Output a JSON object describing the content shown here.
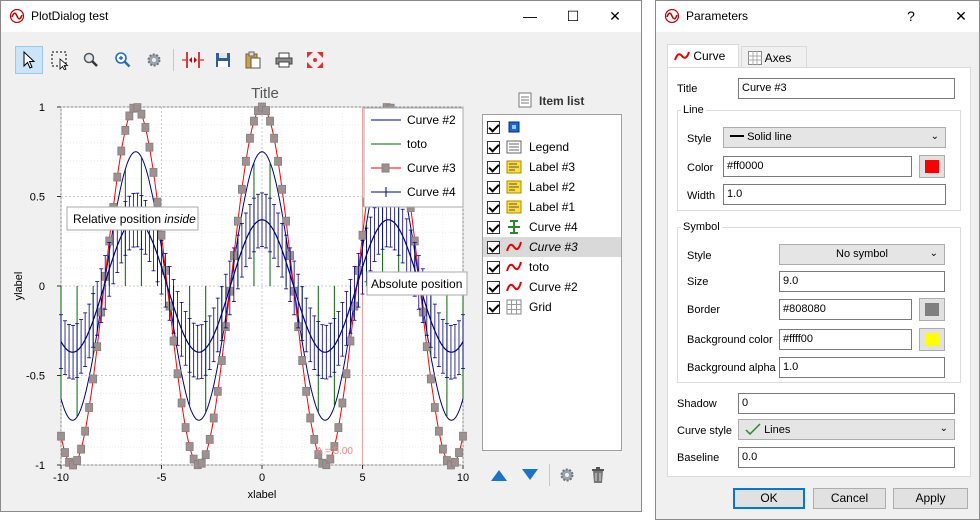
{
  "plot_window": {
    "title": "PlotDialog test",
    "controls": {
      "minimize": "—",
      "maximize": "☐",
      "close": "✕"
    },
    "toolbar": [
      "select-tool",
      "zoom-rect-tool",
      "zoom-tool",
      "zoom-fit-tool",
      "settings-tool",
      "cursor-tool",
      "save-tool",
      "copy-tool",
      "print-tool",
      "fullscreen-tool"
    ],
    "item_list_title": "Item list",
    "items": [
      {
        "label": "",
        "icon": "image-icon",
        "checked": true
      },
      {
        "label": "Legend",
        "icon": "legend-icon",
        "checked": true
      },
      {
        "label": "Label #3",
        "icon": "label-icon",
        "checked": true
      },
      {
        "label": "Label #2",
        "icon": "label-icon",
        "checked": true
      },
      {
        "label": "Label #1",
        "icon": "label-icon",
        "checked": true
      },
      {
        "label": "Curve #4",
        "icon": "errorbar-icon",
        "checked": true
      },
      {
        "label": "Curve #3",
        "icon": "curve-icon",
        "checked": true,
        "selected": true
      },
      {
        "label": "toto",
        "icon": "curve-icon",
        "checked": true
      },
      {
        "label": "Curve #2",
        "icon": "curve-icon",
        "checked": true
      },
      {
        "label": "Grid",
        "icon": "grid-icon",
        "checked": true
      }
    ],
    "list_tools": [
      "move-up-icon",
      "move-down-icon",
      "gear-icon",
      "trash-icon"
    ]
  },
  "chart_data": {
    "type": "line",
    "title": "Title",
    "xlabel": "xlabel",
    "ylabel": "ylabel",
    "xlim": [
      -10,
      10
    ],
    "ylim": [
      -1,
      1
    ],
    "xticks": [
      "-10",
      "-5",
      "0",
      "5",
      "10"
    ],
    "yticks": [
      "-1",
      "-0.5",
      "0",
      "0.5",
      "1"
    ],
    "grid": true,
    "legend_position": "top-right",
    "series": [
      {
        "name": "Curve #2",
        "color": "#00008b",
        "function": "0.75*cos(x)",
        "style": "line"
      },
      {
        "name": "toto",
        "color": "#006400",
        "function": "0.75*cos(x)",
        "style": "sticks"
      },
      {
        "name": "Curve #3",
        "color": "#ff0000",
        "marker_border": "#808080",
        "marker_fill": "#ffff00",
        "function": "cos(x)",
        "style": "line+square-markers"
      },
      {
        "name": "Curve #4",
        "color": "#00008b",
        "function": "0.37*cos(x)",
        "style": "errorbars",
        "error": 0.15
      }
    ],
    "annotations": {
      "label_inside": [
        "Relative position",
        "inside"
      ],
      "label_absolute": "Absolute position",
      "marker_label": "A = 5.00",
      "marker_x": 5
    }
  },
  "parameters_window": {
    "title": "Parameters",
    "help": "?",
    "close": "✕",
    "tabs": [
      "Curve",
      "Axes"
    ],
    "title_label": "Title",
    "title_value": "Curve #3",
    "line_group": "Line",
    "style_label": "Style",
    "style_value": "Solid line",
    "color_label": "Color",
    "color_value": "#ff0000",
    "width_label": "Width",
    "width_value": "1.0",
    "symbol_group": "Symbol",
    "symbol_style_label": "Style",
    "symbol_style_value": "No symbol",
    "size_label": "Size",
    "size_value": "9.0",
    "border_label": "Border",
    "border_value": "#808080",
    "bg_label": "Background color",
    "bg_value": "#ffff00",
    "alpha_label": "Background alpha",
    "alpha_value": "1.0",
    "shadow_label": "Shadow",
    "shadow_value": "0",
    "curve_style_label": "Curve style",
    "curve_style_value": "Lines",
    "baseline_label": "Baseline",
    "baseline_value": "0.0",
    "buttons": {
      "ok": "OK",
      "cancel": "Cancel",
      "apply": "Apply"
    }
  }
}
